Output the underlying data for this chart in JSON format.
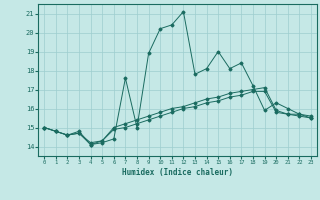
{
  "xlabel": "Humidex (Indice chaleur)",
  "bg_color": "#c5e8e6",
  "grid_color": "#9ecece",
  "line_color": "#1a6b60",
  "xlim": [
    -0.5,
    23.5
  ],
  "ylim": [
    13.5,
    21.5
  ],
  "xticks": [
    0,
    1,
    2,
    3,
    4,
    5,
    6,
    7,
    8,
    9,
    10,
    11,
    12,
    13,
    14,
    15,
    16,
    17,
    18,
    19,
    20,
    21,
    22,
    23
  ],
  "yticks": [
    14,
    15,
    16,
    17,
    18,
    19,
    20,
    21
  ],
  "series": [
    [
      15.0,
      14.8,
      14.6,
      14.8,
      14.1,
      14.2,
      14.4,
      17.6,
      15.0,
      18.9,
      20.2,
      20.4,
      21.1,
      17.8,
      18.1,
      19.0,
      18.1,
      18.4,
      17.2,
      15.9,
      16.3,
      16.0,
      15.7,
      15.5
    ],
    [
      15.0,
      14.8,
      14.6,
      14.7,
      14.1,
      14.3,
      14.9,
      15.0,
      15.2,
      15.4,
      15.6,
      15.8,
      16.0,
      16.1,
      16.3,
      16.4,
      16.6,
      16.7,
      16.9,
      16.9,
      15.8,
      15.7,
      15.7,
      15.6
    ],
    [
      15.0,
      14.8,
      14.6,
      14.7,
      14.2,
      14.3,
      15.0,
      15.2,
      15.4,
      15.6,
      15.8,
      16.0,
      16.1,
      16.3,
      16.5,
      16.6,
      16.8,
      16.9,
      17.0,
      17.1,
      15.9,
      15.7,
      15.6,
      15.5
    ]
  ]
}
